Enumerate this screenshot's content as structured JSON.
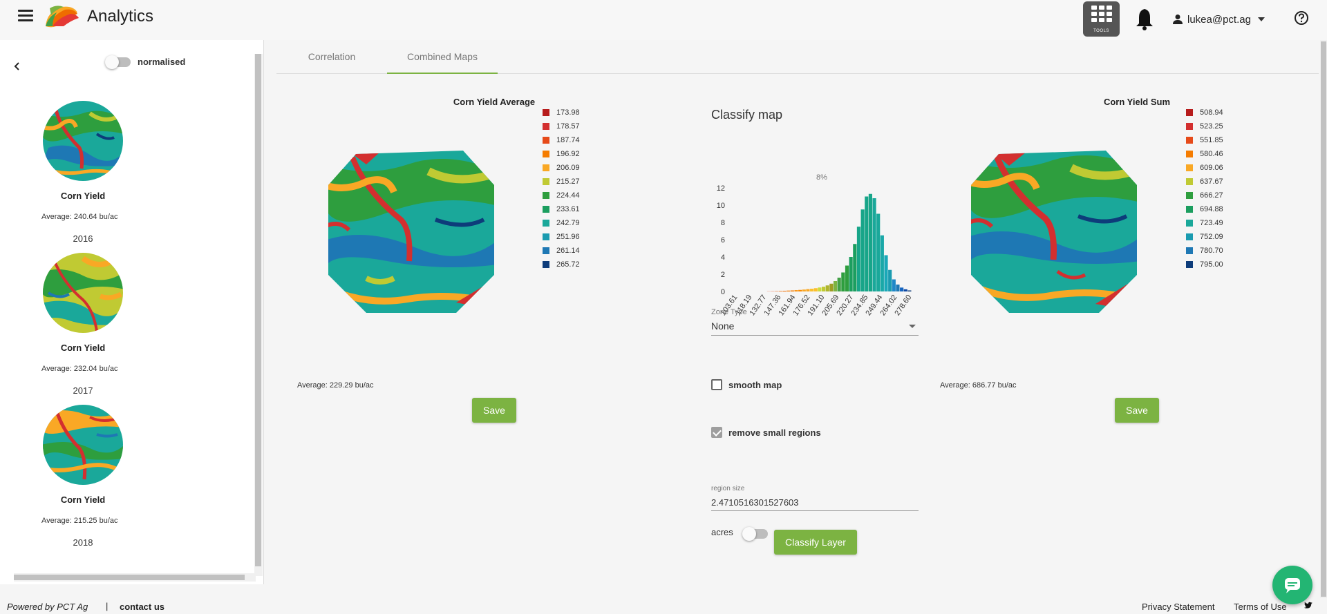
{
  "header": {
    "title": "Analytics",
    "tools_label": "TOOLS",
    "user": "lukea@pct.ag"
  },
  "sidebar": {
    "normalised_label": "normalised",
    "layers": [
      {
        "title": "Corn Yield",
        "average": "Average: 240.64 bu/ac",
        "year": "2016"
      },
      {
        "title": "Corn Yield",
        "average": "Average: 232.04 bu/ac",
        "year": "2017"
      },
      {
        "title": "Corn Yield",
        "average": "Average: 215.25 bu/ac",
        "year": "2018"
      }
    ]
  },
  "tabs": [
    {
      "label": "Correlation",
      "active": false
    },
    {
      "label": "Combined Maps",
      "active": true
    }
  ],
  "maps": {
    "left": {
      "title": "Corn Yield Average",
      "average": "Average: 229.29 bu/ac",
      "save_label": "Save",
      "legend": [
        "173.98",
        "178.57",
        "187.74",
        "196.92",
        "206.09",
        "215.27",
        "224.44",
        "233.61",
        "242.79",
        "251.96",
        "261.14",
        "265.72"
      ]
    },
    "right": {
      "title": "Corn Yield Sum",
      "average": "Average: 686.77 bu/ac",
      "save_label": "Save",
      "legend": [
        "508.94",
        "523.25",
        "551.85",
        "580.46",
        "609.06",
        "637.67",
        "666.27",
        "694.88",
        "723.49",
        "752.09",
        "780.70",
        "795.00"
      ]
    },
    "legend_colors": [
      "#b71c1c",
      "#d32f2f",
      "#e64a19",
      "#f57c00",
      "#f9a825",
      "#c0ca33",
      "#2e9e3e",
      "#1b9e5f",
      "#1aa89a",
      "#1a9bb0",
      "#1e78b4",
      "#0d3c7a"
    ]
  },
  "classify": {
    "title": "Classify map",
    "zone_type_label": "Zone Type",
    "zone_type_value": "None",
    "smooth_map_label": "smooth map",
    "smooth_map_checked": false,
    "remove_small_label": "remove small regions",
    "remove_small_checked": true,
    "region_size_label": "region size",
    "region_size_value": "2.4710516301527603",
    "acres_label": "acres",
    "pct_label": "%",
    "classify_button": "Classify Layer"
  },
  "chart_data": {
    "type": "bar",
    "annotation": "8%",
    "ylim": [
      0,
      12
    ],
    "yticks": [
      0,
      2,
      4,
      6,
      8,
      10,
      12
    ],
    "xticks": [
      "103.61",
      "118.19",
      "132.77",
      "147.36",
      "161.94",
      "176.52",
      "191.10",
      "205.69",
      "220.27",
      "234.85",
      "249.44",
      "264.02",
      "278.60"
    ],
    "values": [
      0,
      0,
      0,
      0,
      0,
      0,
      0,
      0,
      0,
      0.02,
      0.03,
      0.04,
      0.06,
      0.08,
      0.1,
      0.12,
      0.15,
      0.18,
      0.22,
      0.27,
      0.32,
      0.38,
      0.46,
      0.55,
      0.7,
      0.9,
      1.2,
      1.6,
      2.2,
      3,
      4,
      5.5,
      7.5,
      9.5,
      11,
      11.3,
      10.8,
      9,
      6.5,
      4.2,
      2.5,
      1.4,
      0.8,
      0.45,
      0.25,
      0.12
    ],
    "colors": [
      "#b71c1c",
      "#b71c1c",
      "#c62828",
      "#c62828",
      "#d32f2f",
      "#d32f2f",
      "#d84315",
      "#d84315",
      "#e64a19",
      "#e64a19",
      "#e64a19",
      "#e65100",
      "#ef6c00",
      "#ef6c00",
      "#f57c00",
      "#f57c00",
      "#fb8c00",
      "#fb8c00",
      "#f9a825",
      "#f9a825",
      "#fbc02d",
      "#fbc02d",
      "#cddc39",
      "#c0ca33",
      "#afb42b",
      "#9e9d24",
      "#7cb342",
      "#43a047",
      "#2e9e3e",
      "#2e9e3e",
      "#1b9e5f",
      "#1b9e5f",
      "#17a589",
      "#17a589",
      "#17a589",
      "#17a589",
      "#1aa89a",
      "#1aa89a",
      "#1aa8a8",
      "#1aa8b8",
      "#1a9bb0",
      "#1e88c8",
      "#1e78b4",
      "#1565c0",
      "#0d47a1",
      "#0d3c7a"
    ]
  },
  "footer": {
    "powered": "Powered by PCT Ag",
    "separator": "|",
    "contact": "contact us",
    "privacy": "Privacy Statement",
    "terms": "Terms of Use"
  }
}
